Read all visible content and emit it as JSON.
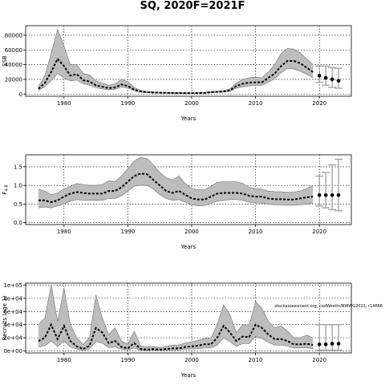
{
  "title": "SQ, 2020F=2021F",
  "colors": {
    "band": "#bdbdbd",
    "band_edge": "#6e6e6e",
    "median": "#000000",
    "grid": "#000000",
    "proj_bar": "#9e9e9e",
    "proj_point": "#000000"
  },
  "chart_data": [
    {
      "type": "line",
      "title": "",
      "xlabel": "Years",
      "ylabel": "SSB",
      "xlim": [
        1974,
        2025
      ],
      "ylim": [
        -3000,
        93000
      ],
      "xticks": [
        1980,
        1990,
        2000,
        2010,
        2020
      ],
      "ytick_labels": [
        "0",
        "20000",
        "40000",
        "60000",
        "80000"
      ],
      "yticks": [
        0,
        20000,
        40000,
        60000,
        80000
      ],
      "grid": true,
      "series": [
        {
          "role": "median",
          "x": [
            1976,
            1977,
            1978,
            1979,
            1980,
            1981,
            1982,
            1983,
            1984,
            1985,
            1986,
            1987,
            1988,
            1989,
            1990,
            1991,
            1992,
            1993,
            1994,
            1995,
            1996,
            1997,
            1998,
            1999,
            2000,
            2001,
            2002,
            2003,
            2004,
            2005,
            2006,
            2007,
            2008,
            2009,
            2010,
            2011,
            2012,
            2013,
            2014,
            2015,
            2016,
            2017,
            2018,
            2019
          ],
          "y": [
            7000,
            15000,
            30000,
            48000,
            38000,
            25000,
            27000,
            19000,
            17000,
            12000,
            10000,
            8000,
            9000,
            13000,
            11000,
            6000,
            3500,
            2500,
            2000,
            1800,
            1600,
            1500,
            1400,
            1300,
            1300,
            1300,
            1500,
            2500,
            3000,
            3500,
            5000,
            11000,
            14000,
            15500,
            16000,
            16000,
            22000,
            28000,
            38000,
            45000,
            45000,
            42000,
            36000,
            30000
          ]
        },
        {
          "role": "upper",
          "x": [
            1976,
            1977,
            1978,
            1979,
            1980,
            1981,
            1982,
            1983,
            1984,
            1985,
            1986,
            1987,
            1988,
            1989,
            1990,
            1991,
            1992,
            1993,
            1994,
            1995,
            1996,
            1997,
            1998,
            1999,
            2000,
            2001,
            2002,
            2003,
            2004,
            2005,
            2006,
            2007,
            2008,
            2009,
            2010,
            2011,
            2012,
            2013,
            2014,
            2015,
            2016,
            2017,
            2018,
            2019
          ],
          "y": [
            10000,
            25000,
            55000,
            88000,
            65000,
            40000,
            40000,
            28000,
            26000,
            18000,
            15000,
            12000,
            14000,
            20000,
            17000,
            9000,
            5000,
            3500,
            3000,
            2500,
            2300,
            2100,
            2000,
            1900,
            1900,
            1900,
            2200,
            3500,
            4000,
            4500,
            7000,
            15000,
            20000,
            22000,
            23000,
            22000,
            30000,
            40000,
            55000,
            62000,
            61000,
            56000,
            48000,
            40000
          ]
        },
        {
          "role": "lower",
          "x": [
            1976,
            1977,
            1978,
            1979,
            1980,
            1981,
            1982,
            1983,
            1984,
            1985,
            1986,
            1987,
            1988,
            1989,
            1990,
            1991,
            1992,
            1993,
            1994,
            1995,
            1996,
            1997,
            1998,
            1999,
            2000,
            2001,
            2002,
            2003,
            2004,
            2005,
            2006,
            2007,
            2008,
            2009,
            2010,
            2011,
            2012,
            2013,
            2014,
            2015,
            2016,
            2017,
            2018,
            2019
          ],
          "y": [
            5000,
            10000,
            18000,
            28000,
            22000,
            18000,
            19000,
            14000,
            12000,
            8500,
            7000,
            6000,
            6500,
            9500,
            8000,
            4500,
            2500,
            1800,
            1500,
            1300,
            1200,
            1100,
            1000,
            1000,
            1000,
            1000,
            1100,
            1800,
            2200,
            2500,
            3800,
            8000,
            10000,
            11000,
            12000,
            12000,
            16000,
            21000,
            29000,
            35000,
            34000,
            31000,
            27000,
            22000
          ]
        },
        {
          "role": "projection",
          "x": [
            2020,
            2021,
            2022,
            2023
          ],
          "y": [
            25000,
            22000,
            20000,
            18000
          ],
          "upper": [
            38000,
            38000,
            36000,
            35000
          ],
          "lower": [
            16000,
            12000,
            9000,
            8000
          ]
        }
      ]
    },
    {
      "type": "line",
      "title": "",
      "xlabel": "Years",
      "ylabel": "F",
      "ylabel_sub": "4-8",
      "xlim": [
        1974,
        2025
      ],
      "ylim": [
        -0.05,
        1.82
      ],
      "xticks": [
        1980,
        1990,
        2000,
        2010,
        2020
      ],
      "ytick_labels": [
        "0.0",
        "0.5",
        "1.0",
        "1.5"
      ],
      "yticks": [
        0,
        0.5,
        1.0,
        1.5
      ],
      "grid": true,
      "series": [
        {
          "role": "median",
          "x": [
            1976,
            1977,
            1978,
            1979,
            1980,
            1981,
            1982,
            1983,
            1984,
            1985,
            1986,
            1987,
            1988,
            1989,
            1990,
            1991,
            1992,
            1993,
            1994,
            1995,
            1996,
            1997,
            1998,
            1999,
            2000,
            2001,
            2002,
            2003,
            2004,
            2005,
            2006,
            2007,
            2008,
            2009,
            2010,
            2011,
            2012,
            2013,
            2014,
            2015,
            2016,
            2017,
            2018,
            2019
          ],
          "y": [
            0.6,
            0.6,
            0.55,
            0.6,
            0.7,
            0.78,
            0.82,
            0.8,
            0.78,
            0.78,
            0.78,
            0.85,
            0.85,
            0.95,
            1.1,
            1.25,
            1.32,
            1.3,
            1.15,
            1.0,
            0.85,
            0.8,
            0.85,
            0.75,
            0.65,
            0.62,
            0.62,
            0.7,
            0.78,
            0.8,
            0.8,
            0.8,
            0.78,
            0.72,
            0.7,
            0.7,
            0.65,
            0.63,
            0.63,
            0.62,
            0.62,
            0.65,
            0.68,
            0.7
          ]
        },
        {
          "role": "upper",
          "x": [
            1976,
            1977,
            1978,
            1979,
            1980,
            1981,
            1982,
            1983,
            1984,
            1985,
            1986,
            1987,
            1988,
            1989,
            1990,
            1991,
            1992,
            1993,
            1994,
            1995,
            1996,
            1997,
            1998,
            1999,
            2000,
            2001,
            2002,
            2003,
            2004,
            2005,
            2006,
            2007,
            2008,
            2009,
            2010,
            2011,
            2012,
            2013,
            2014,
            2015,
            2016,
            2017,
            2018,
            2019
          ],
          "y": [
            0.9,
            0.85,
            0.75,
            0.8,
            0.9,
            0.98,
            1.05,
            1.02,
            1.0,
            1.0,
            1.02,
            1.12,
            1.1,
            1.25,
            1.45,
            1.65,
            1.75,
            1.72,
            1.55,
            1.35,
            1.2,
            1.15,
            1.25,
            1.05,
            0.92,
            0.88,
            0.88,
            0.98,
            1.08,
            1.1,
            1.1,
            1.1,
            1.05,
            0.95,
            0.92,
            0.9,
            0.85,
            0.83,
            0.83,
            0.82,
            0.82,
            0.85,
            0.92,
            1.0
          ]
        },
        {
          "role": "lower",
          "x": [
            1976,
            1977,
            1978,
            1979,
            1980,
            1981,
            1982,
            1983,
            1984,
            1985,
            1986,
            1987,
            1988,
            1989,
            1990,
            1991,
            1992,
            1993,
            1994,
            1995,
            1996,
            1997,
            1998,
            1999,
            2000,
            2001,
            2002,
            2003,
            2004,
            2005,
            2006,
            2007,
            2008,
            2009,
            2010,
            2011,
            2012,
            2013,
            2014,
            2015,
            2016,
            2017,
            2018,
            2019
          ],
          "y": [
            0.4,
            0.42,
            0.4,
            0.45,
            0.5,
            0.58,
            0.62,
            0.6,
            0.6,
            0.6,
            0.6,
            0.65,
            0.65,
            0.72,
            0.85,
            0.98,
            1.0,
            1.0,
            0.9,
            0.75,
            0.65,
            0.6,
            0.62,
            0.55,
            0.48,
            0.45,
            0.46,
            0.52,
            0.58,
            0.6,
            0.62,
            0.62,
            0.6,
            0.55,
            0.53,
            0.52,
            0.5,
            0.48,
            0.48,
            0.47,
            0.47,
            0.48,
            0.5,
            0.52
          ]
        },
        {
          "role": "projection",
          "x": [
            2020,
            2021,
            2022,
            2023
          ],
          "y": [
            0.74,
            0.74,
            0.74,
            0.74
          ],
          "upper": [
            1.25,
            1.35,
            1.55,
            1.7
          ],
          "lower": [
            0.45,
            0.4,
            0.35,
            0.32
          ]
        }
      ]
    },
    {
      "type": "line",
      "title": "",
      "xlabel": "Years",
      "ylabel": "Recruits (age 1)",
      "annotation": "stockassessment.org, codWestIn/NWWG2021, r14666",
      "xlim": [
        1974,
        2025
      ],
      "ylim": [
        -0.3,
        10.3
      ],
      "xticks": [
        1980,
        1990,
        2000,
        2010,
        2020
      ],
      "ytick_labels": [
        "0e+00",
        "2e+04",
        "4e+04",
        "6e+04",
        "8e+04",
        "1e+05"
      ],
      "yticks": [
        0,
        2,
        4,
        6,
        8,
        10
      ],
      "grid": true,
      "series": [
        {
          "role": "median",
          "x": [
            1976,
            1977,
            1978,
            1979,
            1980,
            1981,
            1982,
            1983,
            1984,
            1985,
            1986,
            1987,
            1988,
            1989,
            1990,
            1991,
            1992,
            1993,
            1994,
            1995,
            1996,
            1997,
            1998,
            1999,
            2000,
            2001,
            2002,
            2003,
            2004,
            2005,
            2006,
            2007,
            2008,
            2009,
            2010,
            2011,
            2012,
            2013,
            2014,
            2015,
            2016,
            2017,
            2018,
            2019
          ],
          "y": [
            1.5,
            2.0,
            4.0,
            1.8,
            3.8,
            1.5,
            0.7,
            0.3,
            0.8,
            3.5,
            2.8,
            1.2,
            1.5,
            0.6,
            0.4,
            1.2,
            0.3,
            0.2,
            0.3,
            0.2,
            0.3,
            0.4,
            0.4,
            0.6,
            0.7,
            0.8,
            1.0,
            1.0,
            2.0,
            3.8,
            2.8,
            1.5,
            2.2,
            2.1,
            4.0,
            3.5,
            2.5,
            1.8,
            1.8,
            1.5,
            1.0,
            1.0,
            1.1,
            0.9
          ]
        },
        {
          "role": "upper",
          "x": [
            1976,
            1977,
            1978,
            1979,
            1980,
            1981,
            1982,
            1983,
            1984,
            1985,
            1986,
            1987,
            1988,
            1989,
            1990,
            1991,
            1992,
            1993,
            1994,
            1995,
            1996,
            1997,
            1998,
            1999,
            2000,
            2001,
            2002,
            2003,
            2004,
            2005,
            2006,
            2007,
            2008,
            2009,
            2010,
            2011,
            2012,
            2013,
            2014,
            2015,
            2016,
            2017,
            2018,
            2019
          ],
          "y": [
            4.0,
            5.0,
            10.0,
            4.5,
            9.5,
            4.0,
            2.0,
            1.0,
            2.0,
            8.5,
            5.0,
            2.5,
            3.5,
            1.5,
            1.0,
            3.0,
            0.8,
            0.6,
            0.7,
            0.5,
            0.7,
            0.9,
            0.9,
            1.2,
            1.4,
            1.6,
            1.9,
            1.9,
            4.0,
            7.0,
            5.5,
            2.8,
            4.0,
            3.8,
            7.5,
            6.5,
            4.5,
            3.5,
            3.8,
            3.0,
            2.0,
            2.0,
            2.4,
            2.0
          ]
        },
        {
          "role": "lower",
          "x": [
            1976,
            1977,
            1978,
            1979,
            1980,
            1981,
            1982,
            1983,
            1984,
            1985,
            1986,
            1987,
            1988,
            1989,
            1990,
            1991,
            1992,
            1993,
            1994,
            1995,
            1996,
            1997,
            1998,
            1999,
            2000,
            2001,
            2002,
            2003,
            2004,
            2005,
            2006,
            2007,
            2008,
            2009,
            2010,
            2011,
            2012,
            2013,
            2014,
            2015,
            2016,
            2017,
            2018,
            2019
          ],
          "y": [
            0.6,
            0.8,
            1.5,
            0.7,
            1.5,
            0.6,
            0.3,
            0.1,
            0.3,
            1.4,
            1.2,
            0.5,
            0.6,
            0.25,
            0.15,
            0.45,
            0.1,
            0.08,
            0.1,
            0.08,
            0.1,
            0.15,
            0.15,
            0.25,
            0.3,
            0.35,
            0.45,
            0.45,
            0.9,
            2.0,
            1.4,
            0.7,
            1.1,
            1.1,
            2.2,
            1.9,
            1.3,
            0.9,
            0.9,
            0.75,
            0.45,
            0.45,
            0.5,
            0.35
          ]
        },
        {
          "role": "projection",
          "x": [
            2020,
            2021,
            2022,
            2023
          ],
          "y": [
            1.0,
            1.0,
            1.1,
            1.1
          ],
          "upper": [
            4.0,
            4.0,
            4.0,
            4.0
          ],
          "lower": [
            0.1,
            0.1,
            0.1,
            0.1
          ]
        }
      ]
    }
  ]
}
